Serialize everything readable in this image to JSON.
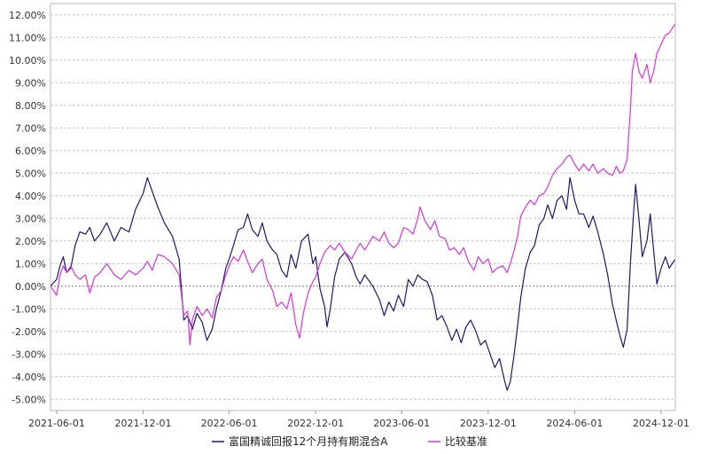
{
  "chart_data": {
    "type": "line",
    "title": "",
    "xlabel": "",
    "ylabel": "",
    "ylim": [
      -5.5,
      12.5
    ],
    "y_ticks": [
      -5,
      -4,
      -3,
      -2,
      -1,
      0,
      1,
      2,
      3,
      4,
      5,
      6,
      7,
      8,
      9,
      10,
      11,
      12
    ],
    "y_tick_labels": [
      "-5.00%",
      "-4.00%",
      "-3.00%",
      "-2.00%",
      "-1.00%",
      "0.00%",
      "1.00%",
      "2.00%",
      "3.00%",
      "4.00%",
      "5.00%",
      "6.00%",
      "7.00%",
      "8.00%",
      "9.00%",
      "10.00%",
      "11.00%",
      "12.00%"
    ],
    "x_range": [
      "2021-05-19",
      "2024-12-31"
    ],
    "x_ticks": [
      "2021-06-01",
      "2021-12-01",
      "2022-06-01",
      "2022-12-01",
      "2023-06-01",
      "2023-12-01",
      "2024-06-01",
      "2024-12-01"
    ],
    "grid": "horizontal dashed",
    "legend_position": "bottom-center",
    "series": [
      {
        "name": "富国精诚回报12个月持有期混合A",
        "color": "#191970",
        "points": [
          [
            "2021-05-19",
            0.0
          ],
          [
            "2021-06-01",
            0.3
          ],
          [
            "2021-06-08",
            0.9
          ],
          [
            "2021-06-15",
            1.3
          ],
          [
            "2021-06-22",
            0.6
          ],
          [
            "2021-07-01",
            0.8
          ],
          [
            "2021-07-10",
            1.8
          ],
          [
            "2021-07-20",
            2.4
          ],
          [
            "2021-08-01",
            2.3
          ],
          [
            "2021-08-10",
            2.6
          ],
          [
            "2021-08-20",
            2.0
          ],
          [
            "2021-09-01",
            2.3
          ],
          [
            "2021-09-15",
            2.8
          ],
          [
            "2021-10-01",
            2.0
          ],
          [
            "2021-10-15",
            2.6
          ],
          [
            "2021-11-01",
            2.4
          ],
          [
            "2021-11-15",
            3.4
          ],
          [
            "2021-12-01",
            4.1
          ],
          [
            "2021-12-10",
            4.8
          ],
          [
            "2021-12-20",
            4.2
          ],
          [
            "2022-01-01",
            3.5
          ],
          [
            "2022-01-15",
            2.8
          ],
          [
            "2022-02-01",
            2.2
          ],
          [
            "2022-02-15",
            1.2
          ],
          [
            "2022-02-25",
            -1.5
          ],
          [
            "2022-03-05",
            -1.3
          ],
          [
            "2022-03-15",
            -1.9
          ],
          [
            "2022-03-25",
            -1.2
          ],
          [
            "2022-04-05",
            -1.6
          ],
          [
            "2022-04-15",
            -2.4
          ],
          [
            "2022-04-26",
            -1.9
          ],
          [
            "2022-05-05",
            -1.0
          ],
          [
            "2022-05-15",
            -0.2
          ],
          [
            "2022-05-25",
            0.8
          ],
          [
            "2022-06-01",
            1.2
          ],
          [
            "2022-06-10",
            1.8
          ],
          [
            "2022-06-20",
            2.5
          ],
          [
            "2022-07-01",
            2.6
          ],
          [
            "2022-07-10",
            3.2
          ],
          [
            "2022-07-20",
            2.5
          ],
          [
            "2022-08-01",
            2.2
          ],
          [
            "2022-08-10",
            2.8
          ],
          [
            "2022-08-20",
            2.0
          ],
          [
            "2022-09-01",
            1.6
          ],
          [
            "2022-09-10",
            1.4
          ],
          [
            "2022-09-20",
            0.7
          ],
          [
            "2022-10-01",
            0.4
          ],
          [
            "2022-10-10",
            1.4
          ],
          [
            "2022-10-20",
            0.8
          ],
          [
            "2022-11-01",
            2.0
          ],
          [
            "2022-11-15",
            2.3
          ],
          [
            "2022-11-25",
            1.0
          ],
          [
            "2022-12-01",
            1.3
          ],
          [
            "2022-12-10",
            -0.1
          ],
          [
            "2022-12-20",
            -0.9
          ],
          [
            "2022-12-25",
            -1.8
          ],
          [
            "2023-01-01",
            -1.0
          ],
          [
            "2023-01-10",
            0.4
          ],
          [
            "2023-01-20",
            1.2
          ],
          [
            "2023-02-01",
            1.5
          ],
          [
            "2023-02-15",
            1.0
          ],
          [
            "2023-02-25",
            0.4
          ],
          [
            "2023-03-05",
            0.1
          ],
          [
            "2023-03-15",
            0.5
          ],
          [
            "2023-04-01",
            0.0
          ],
          [
            "2023-04-15",
            -0.6
          ],
          [
            "2023-04-25",
            -1.3
          ],
          [
            "2023-05-05",
            -0.7
          ],
          [
            "2023-05-15",
            -1.1
          ],
          [
            "2023-05-25",
            -0.4
          ],
          [
            "2023-06-05",
            -0.9
          ],
          [
            "2023-06-15",
            0.3
          ],
          [
            "2023-06-25",
            0.0
          ],
          [
            "2023-07-05",
            0.5
          ],
          [
            "2023-07-15",
            0.3
          ],
          [
            "2023-07-25",
            0.2
          ],
          [
            "2023-08-05",
            -0.4
          ],
          [
            "2023-08-15",
            -1.5
          ],
          [
            "2023-08-25",
            -1.3
          ],
          [
            "2023-09-05",
            -1.8
          ],
          [
            "2023-09-15",
            -2.4
          ],
          [
            "2023-09-25",
            -1.9
          ],
          [
            "2023-10-05",
            -2.5
          ],
          [
            "2023-10-15",
            -1.8
          ],
          [
            "2023-10-25",
            -1.5
          ],
          [
            "2023-11-05",
            -2.0
          ],
          [
            "2023-11-15",
            -2.6
          ],
          [
            "2023-11-25",
            -2.4
          ],
          [
            "2023-12-05",
            -3.0
          ],
          [
            "2023-12-15",
            -3.6
          ],
          [
            "2023-12-25",
            -3.2
          ],
          [
            "2024-01-05",
            -4.2
          ],
          [
            "2024-01-10",
            -4.6
          ],
          [
            "2024-01-17",
            -4.2
          ],
          [
            "2024-01-25",
            -3.0
          ],
          [
            "2024-02-01",
            -1.8
          ],
          [
            "2024-02-08",
            -0.5
          ],
          [
            "2024-02-18",
            0.8
          ],
          [
            "2024-02-28",
            1.5
          ],
          [
            "2024-03-08",
            1.8
          ],
          [
            "2024-03-18",
            2.7
          ],
          [
            "2024-03-28",
            3.0
          ],
          [
            "2024-04-05",
            3.6
          ],
          [
            "2024-04-15",
            3.0
          ],
          [
            "2024-04-25",
            3.8
          ],
          [
            "2024-05-05",
            4.0
          ],
          [
            "2024-05-15",
            3.4
          ],
          [
            "2024-05-22",
            4.8
          ],
          [
            "2024-06-01",
            3.8
          ],
          [
            "2024-06-10",
            3.2
          ],
          [
            "2024-06-20",
            3.2
          ],
          [
            "2024-07-01",
            2.6
          ],
          [
            "2024-07-10",
            3.1
          ],
          [
            "2024-07-20",
            2.4
          ],
          [
            "2024-08-01",
            1.4
          ],
          [
            "2024-08-10",
            0.5
          ],
          [
            "2024-08-20",
            -0.8
          ],
          [
            "2024-08-28",
            -1.5
          ],
          [
            "2024-09-05",
            -2.2
          ],
          [
            "2024-09-12",
            -2.7
          ],
          [
            "2024-09-20",
            -1.9
          ],
          [
            "2024-09-27",
            1.0
          ],
          [
            "2024-10-03",
            3.0
          ],
          [
            "2024-10-08",
            4.5
          ],
          [
            "2024-10-15",
            3.0
          ],
          [
            "2024-10-22",
            1.3
          ],
          [
            "2024-11-01",
            2.0
          ],
          [
            "2024-11-08",
            3.2
          ],
          [
            "2024-11-15",
            1.6
          ],
          [
            "2024-11-22",
            0.1
          ],
          [
            "2024-12-01",
            0.8
          ],
          [
            "2024-12-10",
            1.3
          ],
          [
            "2024-12-18",
            0.8
          ],
          [
            "2024-12-31",
            1.2
          ]
        ]
      },
      {
        "name": "比较基准",
        "color": "#dd33dd",
        "points": [
          [
            "2021-05-19",
            0.0
          ],
          [
            "2021-06-01",
            -0.4
          ],
          [
            "2021-06-08",
            0.5
          ],
          [
            "2021-06-15",
            0.9
          ],
          [
            "2021-06-22",
            0.6
          ],
          [
            "2021-07-01",
            0.9
          ],
          [
            "2021-07-10",
            0.5
          ],
          [
            "2021-07-20",
            0.3
          ],
          [
            "2021-08-01",
            0.5
          ],
          [
            "2021-08-10",
            -0.3
          ],
          [
            "2021-08-20",
            0.4
          ],
          [
            "2021-09-01",
            0.6
          ],
          [
            "2021-09-15",
            1.0
          ],
          [
            "2021-10-01",
            0.5
          ],
          [
            "2021-10-15",
            0.3
          ],
          [
            "2021-11-01",
            0.7
          ],
          [
            "2021-11-15",
            0.5
          ],
          [
            "2021-12-01",
            0.8
          ],
          [
            "2021-12-10",
            1.1
          ],
          [
            "2021-12-20",
            0.7
          ],
          [
            "2022-01-01",
            1.4
          ],
          [
            "2022-01-15",
            1.3
          ],
          [
            "2022-02-01",
            1.0
          ],
          [
            "2022-02-15",
            0.5
          ],
          [
            "2022-02-25",
            -1.3
          ],
          [
            "2022-03-05",
            -1.1
          ],
          [
            "2022-03-10",
            -2.6
          ],
          [
            "2022-03-15",
            -1.5
          ],
          [
            "2022-03-25",
            -0.9
          ],
          [
            "2022-04-05",
            -1.3
          ],
          [
            "2022-04-15",
            -1.0
          ],
          [
            "2022-04-26",
            -1.4
          ],
          [
            "2022-05-05",
            -0.5
          ],
          [
            "2022-05-15",
            -0.2
          ],
          [
            "2022-05-25",
            0.5
          ],
          [
            "2022-06-01",
            0.9
          ],
          [
            "2022-06-10",
            1.3
          ],
          [
            "2022-06-20",
            1.1
          ],
          [
            "2022-07-01",
            1.6
          ],
          [
            "2022-07-10",
            1.1
          ],
          [
            "2022-07-20",
            0.6
          ],
          [
            "2022-08-01",
            1.0
          ],
          [
            "2022-08-10",
            1.2
          ],
          [
            "2022-08-20",
            0.3
          ],
          [
            "2022-09-01",
            -0.2
          ],
          [
            "2022-09-10",
            -0.9
          ],
          [
            "2022-09-20",
            -0.7
          ],
          [
            "2022-10-01",
            -1.0
          ],
          [
            "2022-10-10",
            -0.3
          ],
          [
            "2022-10-20",
            -1.7
          ],
          [
            "2022-10-28",
            -2.3
          ],
          [
            "2022-11-05",
            -1.2
          ],
          [
            "2022-11-15",
            -0.3
          ],
          [
            "2022-11-25",
            0.2
          ],
          [
            "2022-12-01",
            0.4
          ],
          [
            "2022-12-10",
            1.0
          ],
          [
            "2022-12-20",
            1.5
          ],
          [
            "2023-01-01",
            1.8
          ],
          [
            "2023-01-10",
            1.6
          ],
          [
            "2023-01-20",
            1.9
          ],
          [
            "2023-02-01",
            1.5
          ],
          [
            "2023-02-15",
            1.2
          ],
          [
            "2023-02-25",
            1.6
          ],
          [
            "2023-03-05",
            1.9
          ],
          [
            "2023-03-15",
            1.6
          ],
          [
            "2023-04-01",
            2.2
          ],
          [
            "2023-04-15",
            2.0
          ],
          [
            "2023-04-25",
            2.4
          ],
          [
            "2023-05-05",
            1.9
          ],
          [
            "2023-05-15",
            1.7
          ],
          [
            "2023-05-25",
            1.9
          ],
          [
            "2023-06-05",
            2.6
          ],
          [
            "2023-06-15",
            2.5
          ],
          [
            "2023-06-25",
            2.3
          ],
          [
            "2023-07-05",
            3.0
          ],
          [
            "2023-07-10",
            3.5
          ],
          [
            "2023-07-20",
            2.9
          ],
          [
            "2023-08-01",
            2.5
          ],
          [
            "2023-08-10",
            2.9
          ],
          [
            "2023-08-20",
            2.2
          ],
          [
            "2023-09-01",
            2.1
          ],
          [
            "2023-09-10",
            1.6
          ],
          [
            "2023-09-20",
            1.7
          ],
          [
            "2023-10-01",
            1.4
          ],
          [
            "2023-10-10",
            1.7
          ],
          [
            "2023-10-20",
            1.1
          ],
          [
            "2023-11-01",
            0.7
          ],
          [
            "2023-11-10",
            1.3
          ],
          [
            "2023-11-20",
            1.0
          ],
          [
            "2023-12-01",
            1.2
          ],
          [
            "2023-12-10",
            0.6
          ],
          [
            "2023-12-20",
            0.8
          ],
          [
            "2024-01-01",
            0.9
          ],
          [
            "2024-01-10",
            0.6
          ],
          [
            "2024-01-17",
            1.0
          ],
          [
            "2024-01-25",
            1.6
          ],
          [
            "2024-02-01",
            2.2
          ],
          [
            "2024-02-08",
            3.1
          ],
          [
            "2024-02-18",
            3.5
          ],
          [
            "2024-02-28",
            3.8
          ],
          [
            "2024-03-08",
            3.6
          ],
          [
            "2024-03-18",
            4.0
          ],
          [
            "2024-03-28",
            4.1
          ],
          [
            "2024-04-05",
            4.4
          ],
          [
            "2024-04-15",
            4.9
          ],
          [
            "2024-04-25",
            5.2
          ],
          [
            "2024-05-05",
            5.4
          ],
          [
            "2024-05-15",
            5.7
          ],
          [
            "2024-05-22",
            5.8
          ],
          [
            "2024-06-01",
            5.4
          ],
          [
            "2024-06-10",
            5.1
          ],
          [
            "2024-06-20",
            5.4
          ],
          [
            "2024-07-01",
            5.1
          ],
          [
            "2024-07-10",
            5.4
          ],
          [
            "2024-07-20",
            5.0
          ],
          [
            "2024-08-01",
            5.2
          ],
          [
            "2024-08-10",
            5.0
          ],
          [
            "2024-08-20",
            4.9
          ],
          [
            "2024-08-28",
            5.3
          ],
          [
            "2024-09-05",
            5.0
          ],
          [
            "2024-09-12",
            5.1
          ],
          [
            "2024-09-20",
            5.6
          ],
          [
            "2024-09-27",
            7.8
          ],
          [
            "2024-10-01",
            9.5
          ],
          [
            "2024-10-08",
            10.3
          ],
          [
            "2024-10-15",
            9.5
          ],
          [
            "2024-10-22",
            9.2
          ],
          [
            "2024-11-01",
            9.8
          ],
          [
            "2024-11-08",
            9.0
          ],
          [
            "2024-11-15",
            9.5
          ],
          [
            "2024-11-22",
            10.3
          ],
          [
            "2024-12-01",
            10.7
          ],
          [
            "2024-12-10",
            11.1
          ],
          [
            "2024-12-18",
            11.2
          ],
          [
            "2024-12-31",
            11.6
          ]
        ]
      }
    ]
  }
}
